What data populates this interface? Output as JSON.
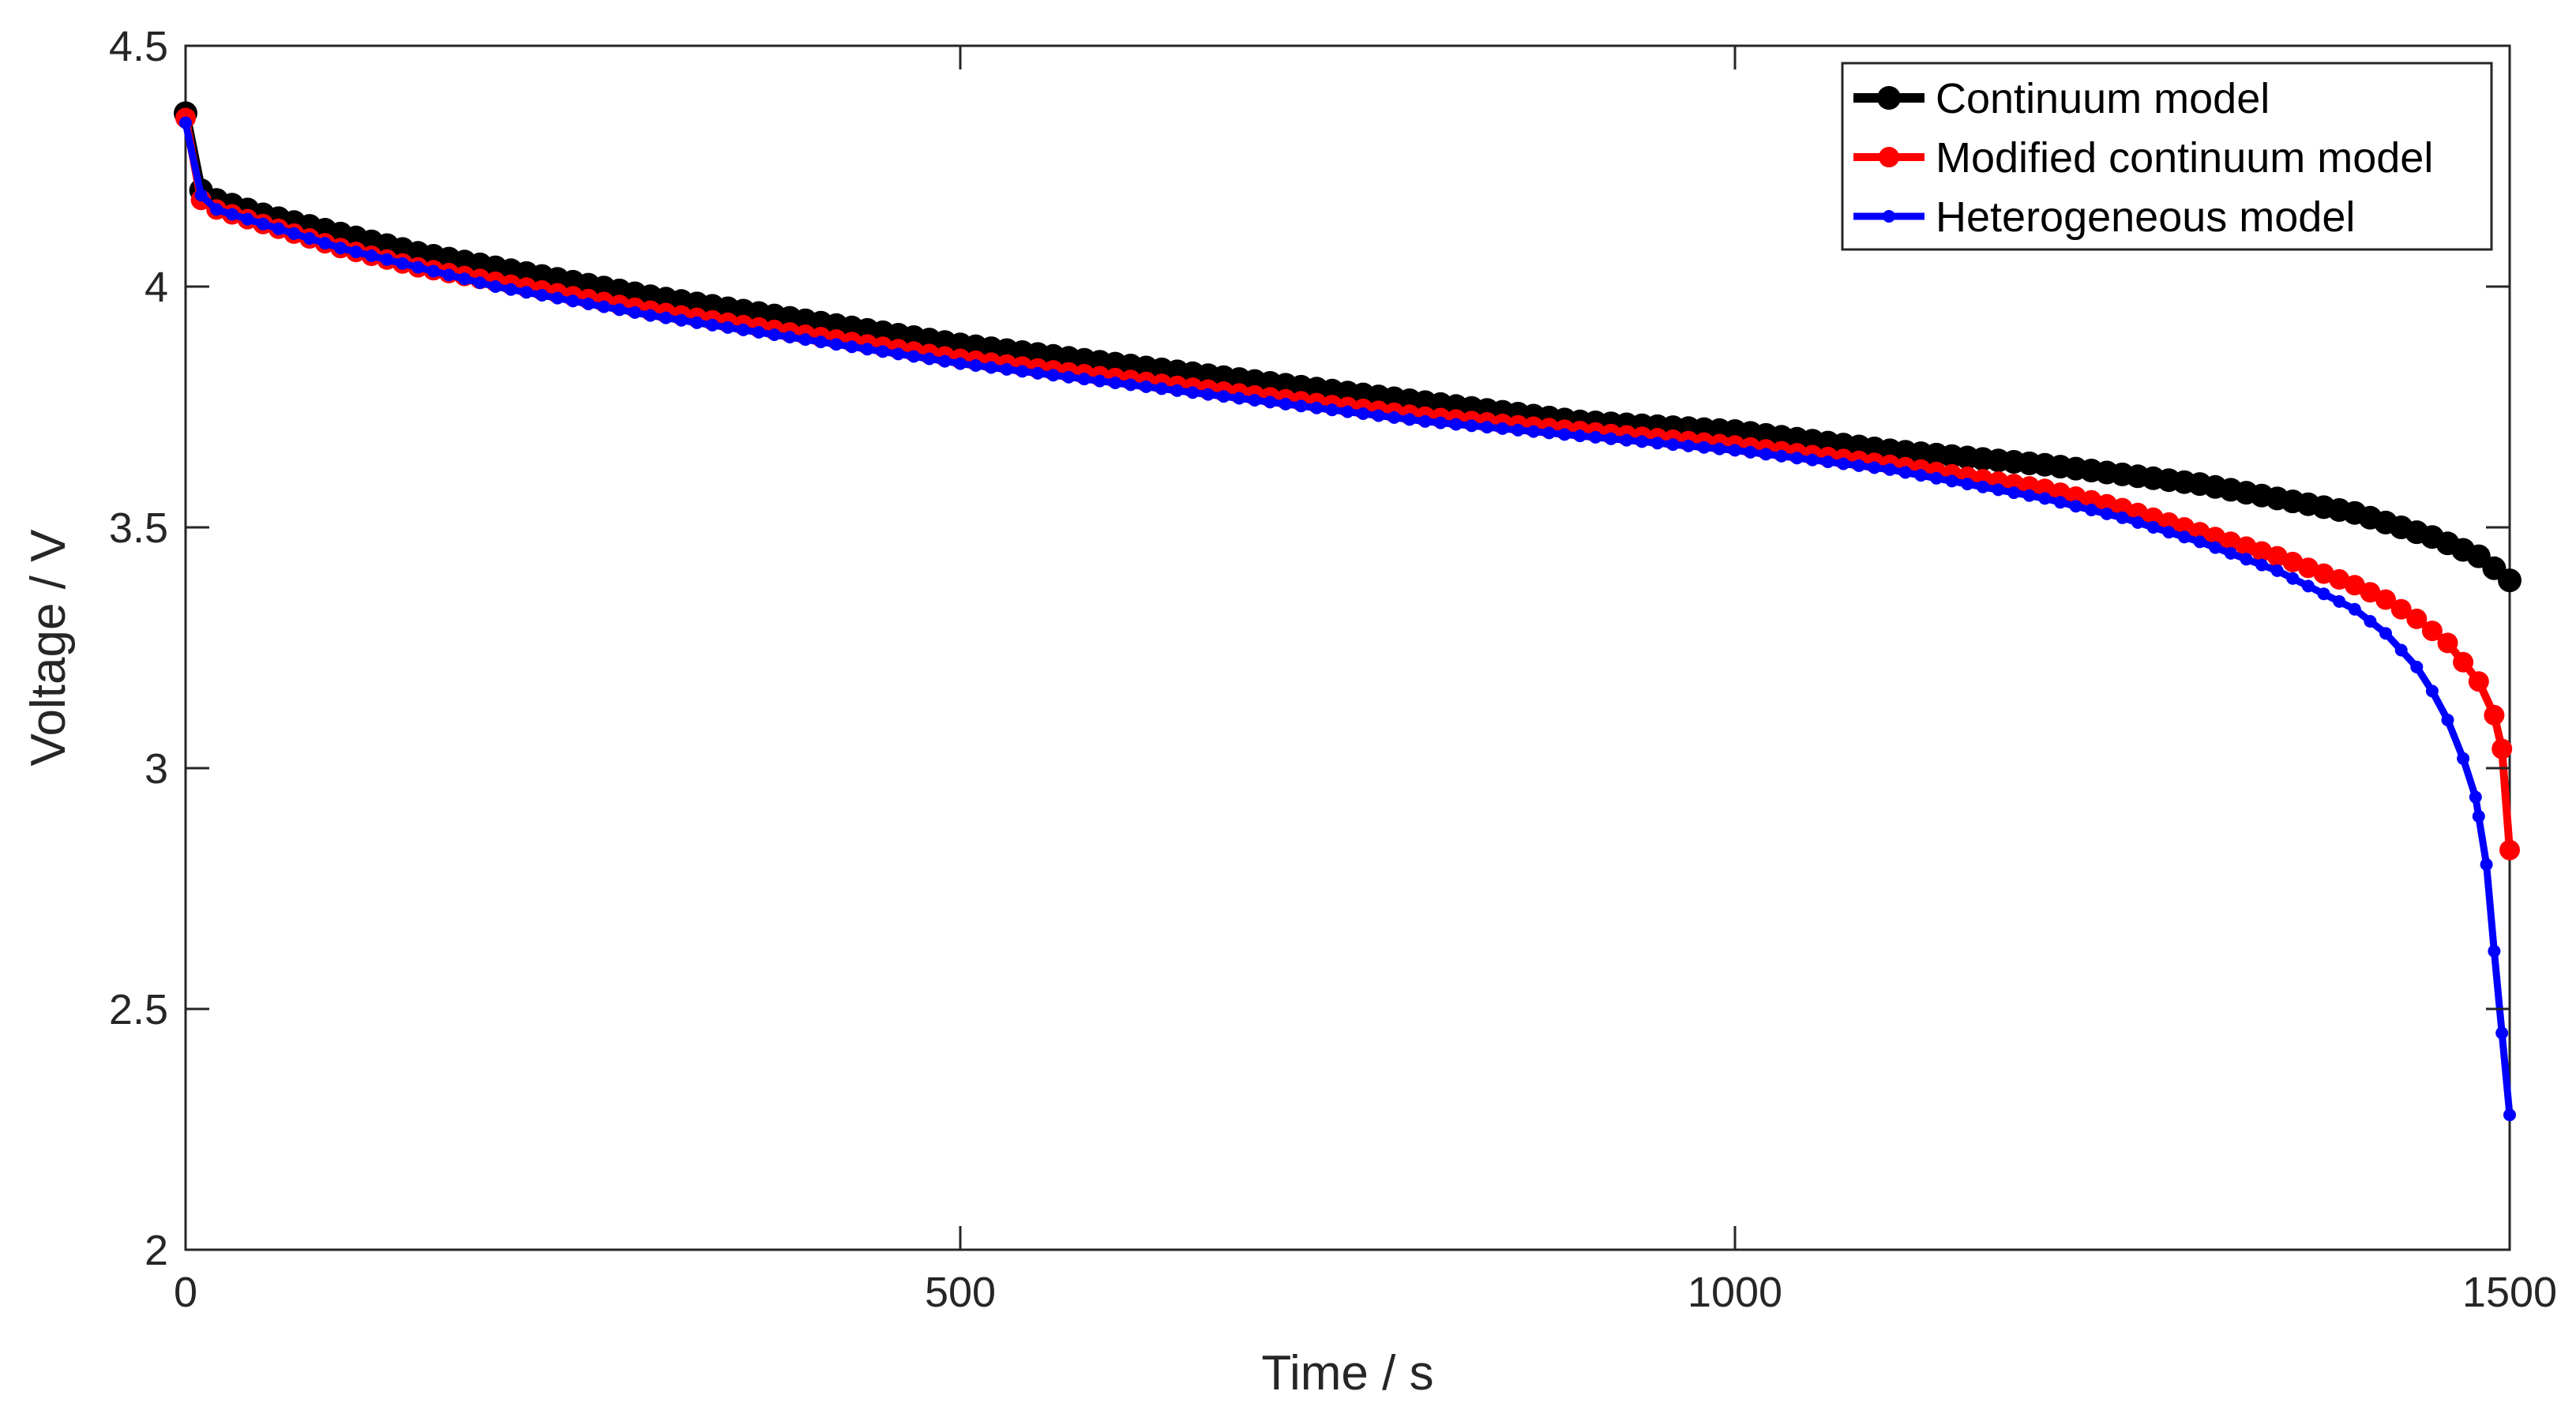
{
  "chart_data": {
    "type": "line",
    "title": "",
    "xlabel": "Time / s",
    "ylabel": "Voltage / V",
    "xlim": [
      0,
      1500
    ],
    "ylim": [
      2,
      4.5
    ],
    "xticks": [
      0,
      500,
      1000,
      1500
    ],
    "yticks": [
      2,
      2.5,
      3,
      3.5,
      4,
      4.5
    ],
    "xtick_labels": [
      "0",
      "500",
      "1000",
      "1500"
    ],
    "ytick_labels": [
      "2",
      "2.5",
      "3",
      "3.5",
      "4",
      "4.5"
    ],
    "grid": false,
    "legend_position": "top-right",
    "series": [
      {
        "name": "Continuum model",
        "color": "#000000",
        "marker": "circle",
        "points": [
          [
            0,
            4.36
          ],
          [
            10,
            4.2
          ],
          [
            20,
            4.18
          ],
          [
            50,
            4.15
          ],
          [
            100,
            4.11
          ],
          [
            150,
            4.07
          ],
          [
            200,
            4.04
          ],
          [
            300,
            3.98
          ],
          [
            400,
            3.93
          ],
          [
            500,
            3.88
          ],
          [
            600,
            3.84
          ],
          [
            700,
            3.8
          ],
          [
            800,
            3.76
          ],
          [
            900,
            3.72
          ],
          [
            1000,
            3.7
          ],
          [
            1100,
            3.66
          ],
          [
            1200,
            3.63
          ],
          [
            1300,
            3.59
          ],
          [
            1350,
            3.56
          ],
          [
            1400,
            3.53
          ],
          [
            1450,
            3.48
          ],
          [
            1480,
            3.44
          ],
          [
            1500,
            3.39
          ]
        ]
      },
      {
        "name": "Modified continuum model",
        "color": "#ff0000",
        "marker": "circle",
        "points": [
          [
            0,
            4.35
          ],
          [
            10,
            4.18
          ],
          [
            20,
            4.16
          ],
          [
            50,
            4.13
          ],
          [
            100,
            4.08
          ],
          [
            150,
            4.04
          ],
          [
            200,
            4.01
          ],
          [
            300,
            3.95
          ],
          [
            400,
            3.9
          ],
          [
            500,
            3.85
          ],
          [
            600,
            3.81
          ],
          [
            700,
            3.77
          ],
          [
            800,
            3.73
          ],
          [
            900,
            3.7
          ],
          [
            1000,
            3.67
          ],
          [
            1100,
            3.63
          ],
          [
            1200,
            3.58
          ],
          [
            1250,
            3.54
          ],
          [
            1300,
            3.49
          ],
          [
            1350,
            3.44
          ],
          [
            1400,
            3.38
          ],
          [
            1420,
            3.35
          ],
          [
            1440,
            3.31
          ],
          [
            1460,
            3.26
          ],
          [
            1470,
            3.22
          ],
          [
            1480,
            3.18
          ],
          [
            1490,
            3.11
          ],
          [
            1495,
            3.04
          ],
          [
            1500,
            2.83
          ]
        ]
      },
      {
        "name": "Heterogeneous model",
        "color": "#0000ff",
        "marker": "circle",
        "points": [
          [
            0,
            4.34
          ],
          [
            10,
            4.19
          ],
          [
            20,
            4.16
          ],
          [
            50,
            4.13
          ],
          [
            100,
            4.08
          ],
          [
            150,
            4.04
          ],
          [
            200,
            4.0
          ],
          [
            300,
            3.94
          ],
          [
            400,
            3.89
          ],
          [
            500,
            3.84
          ],
          [
            600,
            3.8
          ],
          [
            700,
            3.76
          ],
          [
            800,
            3.72
          ],
          [
            900,
            3.69
          ],
          [
            1000,
            3.66
          ],
          [
            1100,
            3.62
          ],
          [
            1200,
            3.56
          ],
          [
            1250,
            3.52
          ],
          [
            1300,
            3.47
          ],
          [
            1350,
            3.41
          ],
          [
            1400,
            3.33
          ],
          [
            1420,
            3.28
          ],
          [
            1440,
            3.21
          ],
          [
            1450,
            3.16
          ],
          [
            1460,
            3.1
          ],
          [
            1470,
            3.02
          ],
          [
            1478,
            2.94
          ],
          [
            1485,
            2.8
          ],
          [
            1490,
            2.62
          ],
          [
            1495,
            2.45
          ],
          [
            1500,
            2.28
          ]
        ]
      }
    ]
  }
}
